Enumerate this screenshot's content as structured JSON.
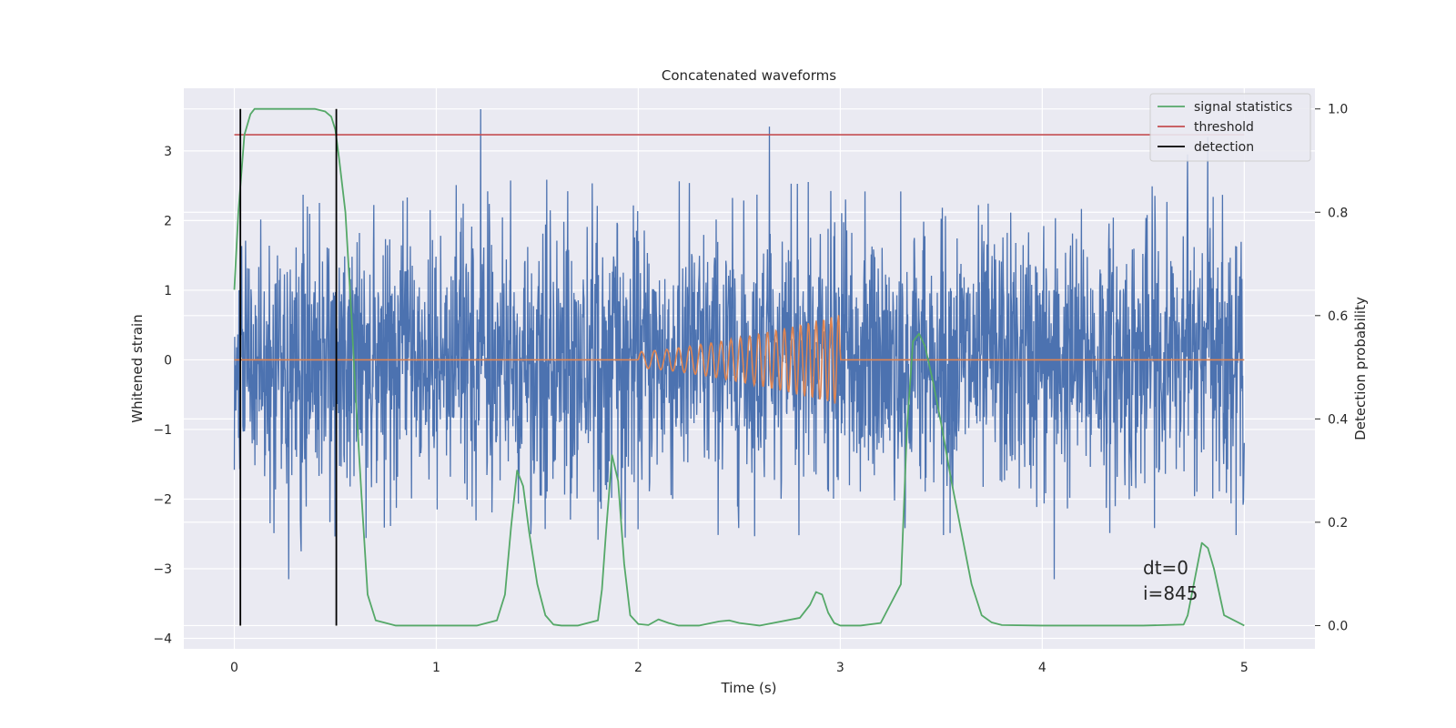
{
  "chart_data": {
    "type": "line",
    "title": "Concatenated waveforms",
    "xlabel": "Time (s)",
    "ylabel": "Whitened strain",
    "y2label": "Detection probability",
    "xlim": [
      -0.25,
      5.35
    ],
    "ylim": [
      -4.15,
      3.9
    ],
    "y2lim": [
      -0.045,
      1.04
    ],
    "xticks": [
      0,
      1,
      2,
      3,
      4,
      5
    ],
    "yticks": [
      -4,
      -3,
      -2,
      -1,
      0,
      1,
      2,
      3
    ],
    "y2ticks": [
      0.0,
      0.2,
      0.4,
      0.6,
      0.8,
      1.0
    ],
    "grid": true,
    "legend_position": "top-right",
    "annotations": [
      "dt=0",
      "i=845"
    ],
    "colors": {
      "strain": "#4c72b0",
      "waveform": "#dd8452",
      "signal_statistics": "#55a868",
      "threshold": "#c44e52",
      "detection": "#000000",
      "background": "#eaeaf2",
      "grid": "#ffffff"
    },
    "series": [
      {
        "name": "strain",
        "axis": "left",
        "description": "whitened noise, roughly uniform amplitude",
        "x_range": [
          0,
          5
        ],
        "envelope": [
          -2.6,
          2.6
        ],
        "spikes": [
          [
            0.27,
            -3.15
          ],
          [
            0.33,
            -2.75
          ],
          [
            1.22,
            3.6
          ],
          [
            2.65,
            3.35
          ],
          [
            4.06,
            -3.15
          ],
          [
            4.82,
            3.2
          ],
          [
            4.72,
            2.95
          ]
        ]
      },
      {
        "name": "waveform",
        "axis": "left",
        "x_range": [
          2.0,
          3.0
        ],
        "peak_amplitude": 0.65,
        "f_start": 15,
        "f_end": 28
      },
      {
        "name": "signal statistics",
        "axis": "right",
        "x": [
          0.0,
          0.02,
          0.05,
          0.08,
          0.1,
          0.15,
          0.2,
          0.3,
          0.4,
          0.45,
          0.48,
          0.5,
          0.52,
          0.55,
          0.58,
          0.6,
          0.63,
          0.66,
          0.7,
          0.8,
          1.0,
          1.2,
          1.3,
          1.34,
          1.37,
          1.4,
          1.43,
          1.46,
          1.5,
          1.54,
          1.58,
          1.62,
          1.7,
          1.8,
          1.82,
          1.84,
          1.87,
          1.9,
          1.93,
          1.96,
          2.0,
          2.05,
          2.1,
          2.15,
          2.2,
          2.3,
          2.4,
          2.45,
          2.5,
          2.6,
          2.8,
          2.85,
          2.88,
          2.91,
          2.94,
          2.97,
          3.0,
          3.1,
          3.2,
          3.3,
          3.33,
          3.36,
          3.39,
          3.42,
          3.46,
          3.5,
          3.55,
          3.6,
          3.65,
          3.7,
          3.75,
          3.8,
          4.0,
          4.5,
          4.7,
          4.72,
          4.75,
          4.79,
          4.82,
          4.85,
          4.9,
          5.0
        ],
        "y": [
          0.65,
          0.8,
          0.95,
          0.99,
          1.0,
          1.0,
          1.0,
          1.0,
          1.0,
          0.995,
          0.985,
          0.96,
          0.9,
          0.8,
          0.6,
          0.45,
          0.25,
          0.06,
          0.01,
          0.0,
          0.0,
          0.0,
          0.01,
          0.06,
          0.19,
          0.3,
          0.27,
          0.18,
          0.08,
          0.02,
          0.002,
          0.0,
          0.0,
          0.01,
          0.07,
          0.18,
          0.33,
          0.28,
          0.12,
          0.02,
          0.003,
          0.001,
          0.012,
          0.005,
          0.0,
          0.0,
          0.008,
          0.01,
          0.005,
          0.0,
          0.015,
          0.04,
          0.065,
          0.06,
          0.025,
          0.005,
          0.0,
          0.0,
          0.005,
          0.08,
          0.38,
          0.55,
          0.565,
          0.54,
          0.47,
          0.39,
          0.28,
          0.18,
          0.08,
          0.02,
          0.006,
          0.001,
          0.0,
          0.0,
          0.002,
          0.02,
          0.08,
          0.16,
          0.15,
          0.11,
          0.02,
          0.0
        ]
      },
      {
        "name": "threshold",
        "axis": "right",
        "value": 0.95,
        "x_range": [
          0,
          5
        ]
      },
      {
        "name": "detection",
        "axis": "right",
        "x": [
          0.03,
          0.505
        ],
        "y_range": [
          0.0,
          1.0
        ]
      }
    ]
  }
}
